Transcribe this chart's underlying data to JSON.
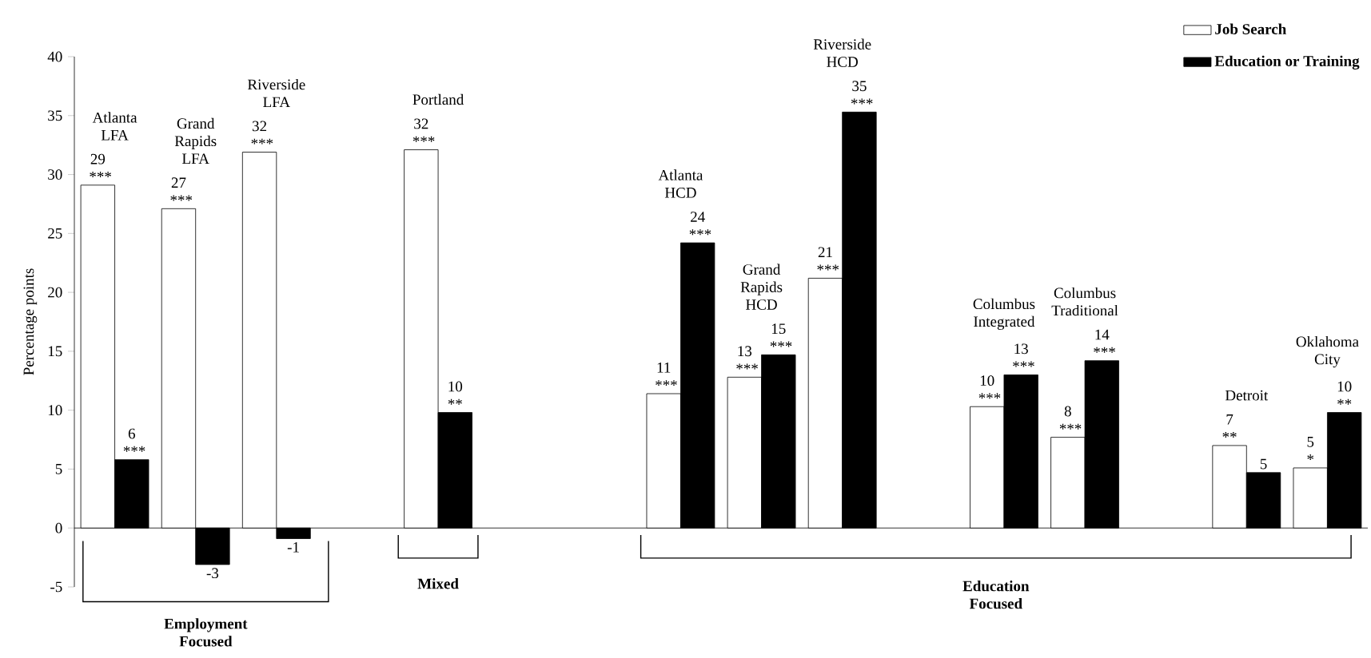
{
  "chart_data": {
    "type": "bar",
    "ylabel": "Percentage points",
    "categories": [
      "Atlanta LFA",
      "Grand Rapids LFA",
      "Riverside LFA",
      null,
      "Portland",
      null,
      null,
      "Atlanta HCD",
      "Grand Rapids HCD",
      "Riverside HCD",
      null,
      "Columbus Integrated",
      "Columbus Traditional",
      null,
      "Detroit",
      "Oklahoma City"
    ],
    "series": [
      {
        "name": "Job Search",
        "color": "#ffffff",
        "values": [
          29.1,
          27.1,
          31.9,
          null,
          32.1,
          null,
          null,
          11.4,
          12.8,
          21.2,
          null,
          10.3,
          7.7,
          null,
          7.0,
          5.1
        ],
        "value_labels": [
          "29 ***",
          "27 ***",
          "32 ***",
          null,
          "32 ***",
          null,
          null,
          "11 ***",
          "13 ***",
          "21 ***",
          null,
          "10 ***",
          "8 ***",
          null,
          "7 **",
          "5 *"
        ]
      },
      {
        "name": "Education or Training",
        "color": "#000000",
        "values": [
          5.8,
          -3.1,
          -0.9,
          null,
          9.8,
          null,
          null,
          24.2,
          14.7,
          35.3,
          null,
          13.0,
          14.2,
          null,
          4.7,
          9.8
        ],
        "value_labels": [
          "6 ***",
          "-3",
          "-1",
          null,
          "10 **",
          null,
          null,
          "24 ***",
          "15 ***",
          "35 ***",
          null,
          "13 ***",
          "14 ***",
          null,
          "5",
          "10 **"
        ]
      }
    ],
    "ylim": [
      -5,
      40
    ],
    "yticks": [
      -5,
      0,
      5,
      10,
      15,
      20,
      25,
      30,
      35,
      40
    ],
    "legend": "top right",
    "annotations": [
      "Employment Focused",
      "Mixed",
      "Education Focused"
    ]
  }
}
